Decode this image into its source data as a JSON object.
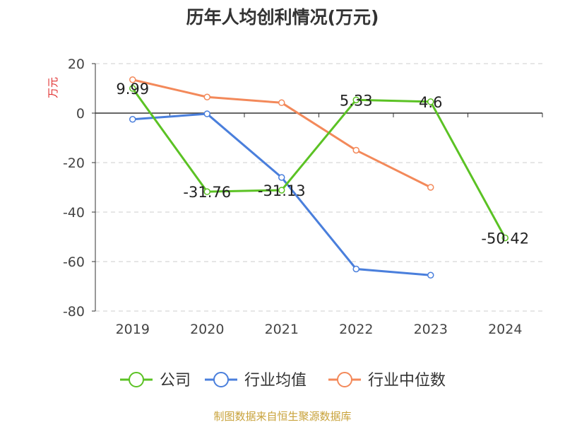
{
  "chart_data": {
    "type": "line",
    "title": "历年人均创利情况(万元)",
    "ylabel": "万元",
    "xlabel": "",
    "categories": [
      "2019",
      "2020",
      "2021",
      "2022",
      "2023",
      "2024"
    ],
    "ylim": [
      -80,
      20
    ],
    "yticks": [
      20,
      0,
      -20,
      -40,
      -60,
      -80
    ],
    "grid": true,
    "legend_position": "bottom",
    "series": [
      {
        "name": "公司",
        "color": "#5bc224",
        "values": [
          9.99,
          -31.76,
          -31.13,
          5.33,
          4.6,
          -50.42
        ],
        "labels": [
          "9.99",
          "-31.76",
          "-31.13",
          "5.33",
          "4.6",
          "-50.42"
        ]
      },
      {
        "name": "行业均值",
        "color": "#4a7fdc",
        "values": [
          -2.5,
          -0.3,
          -26,
          -63,
          -65.5,
          null
        ]
      },
      {
        "name": "行业中位数",
        "color": "#f3895a",
        "values": [
          13.5,
          6.5,
          4.2,
          -15,
          -30,
          null
        ]
      }
    ]
  },
  "footer": {
    "source": "制图数据来自恒生聚源数据库",
    "color": "#c8a23a"
  },
  "style": {
    "axis_color": "#333333",
    "grid_color": "#cccccc",
    "ylabel_color": "#e03030"
  }
}
